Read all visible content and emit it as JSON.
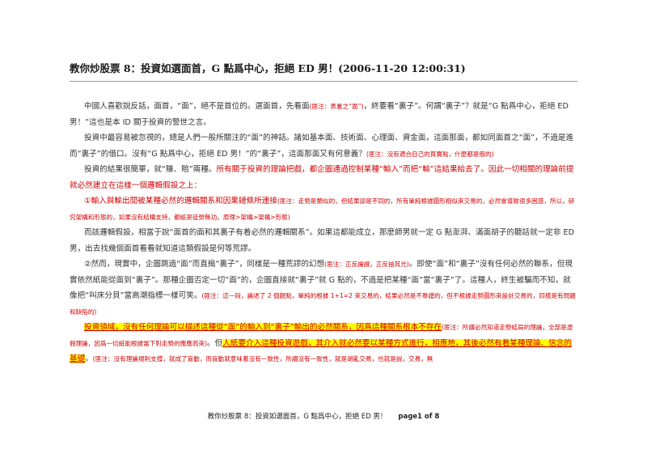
{
  "title": "教你炒股票 8：投資如選面首，G 點爲中心，拒絕 ED 男！(2006-11-20 12:00:31)",
  "p1": {
    "a": "中國人喜歡說反話，面首，“面”，絕不是首位的。選面首，先看面",
    "note": "(匪注：表裏之“面”)",
    "b": "，終要看“裏子”。何謂“裏子”？就是“G 點爲中心，拒絕 ED 男！”這也是本 ID 關于投資的警世之言。"
  },
  "p2": {
    "a": "投資中最容易被忽視的，總是人們一般所關注的“面”的神話。諸如基本面、技術面、心理面、資金面，這面那面，都如同面首之“面”，不過是進而“裏子”的借口。沒有“G 點爲中心，拒絕 ED 男！”的“裏子”，這面那面又有何意義？",
    "note": "(匪注：沒有適合自己的買賣點，什麼都是假的)"
  },
  "p3": {
    "a": "投資的結果很簡單，就“賺、賠”兩種。",
    "b": "所有關于投資的理論把戲，都企圖通過控制某種“輸入”而把“輸”這結果給去了。因此一切相關的理論前提就必然建立在這樣一個邏輯假設之上："
  },
  "p4": {
    "a": "①輸入與輸出間被某種必然的邏輯關系和因果鏈條所連接",
    "note": "(匪注：走勢是類似的，但結果卻是不同的，所有單純根據圖形相似來交易的，必然會導致很多困惑，所以，研究架構和形態的，如果沒有結構支持，都紙是徒勞無功。原理>架構>架構>形態)"
  },
  "p5": {
    "a": "而該邏輯假設，相當于說“面首的面和其裏子有着必然的邏輯關系”。如果這都能成立，那麼師男就一定 G 點澎湃、滿面胡子的聽話就一定非 ED 男，出去找幾個面首看看就知道這類假設是何等荒謬。"
  },
  "p6": {
    "a": "②然而，現實中，企圖跳過“面”而直搗“裏子”，同樣是一種荒謬的幻想",
    "note": "(匪注：正反論證，正反抽耳光)",
    "b": "。即使“面”和“裏子”沒有任何必然的聯系，但現實依然紙能從面到“裏子”。那種企圖否定一切“面”的，企圖直接就“裏子”就 G 點的，不過是把某種“面”當“裏子”了。這種人，終生被騙而不知，就像把“叫床分貝”當高潮指標一樣可笑。",
    "note2": "(匪注：這一段，論述了 2 個觀點，單純的根據 1+1=2 來交易的，結果必然是不靠譜的，但不根據走勢圖形來設計交易的，同樣是有問題和缺陷的)"
  },
  "p7": {
    "hl1": "投資領域，沒有任何理論可以描述這種從“面”的輸入到“裏子”輸出的必然關系，因爲這種關系根本不存在",
    "note": "(匪注：所謂必然知道走勢結局的理論，全部是虛假理論，因爲一切紙能根據當下對走勢的應應而來)",
    "a": "。但",
    "hl2": "人紙要介入這種投資遊戲，其介入就必然要以某種方式進行，相應地，其後必然有着某種理論、信念的基礎",
    "b": "。",
    "note2": "(匪注：沒有理論規則支撐，就成了盲動，而盲動就意味着沒有一致性，所謂沒有一致性，就是胡亂交易，也就是說，交易，無"
  },
  "footer": {
    "title": "教你炒股票 8：投資如選面首，G 點爲中心，拒絕 ED 男！",
    "page": "page1 of 8"
  }
}
